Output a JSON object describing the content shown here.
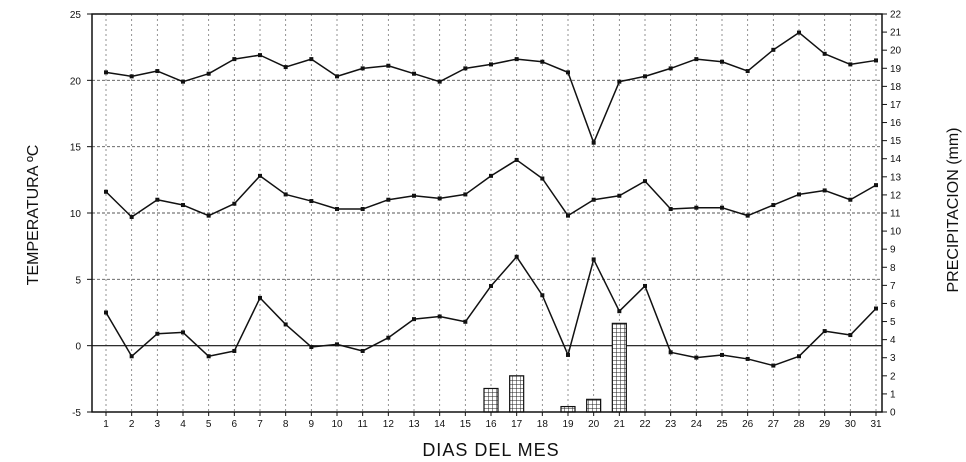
{
  "chart_data": {
    "type": "line",
    "xlabel": "DIAS DEL MES",
    "ylabel": "TEMPERATURA ºC",
    "y2label": "PRECIPITACION (mm)",
    "x": [
      1,
      2,
      3,
      4,
      5,
      6,
      7,
      8,
      9,
      10,
      11,
      12,
      13,
      14,
      15,
      16,
      17,
      18,
      19,
      20,
      21,
      22,
      23,
      24,
      25,
      26,
      27,
      28,
      29,
      30,
      31
    ],
    "ylim": [
      -5,
      25
    ],
    "y_ticks": [
      -5,
      0,
      5,
      10,
      15,
      20,
      25
    ],
    "y2lim": [
      0,
      22
    ],
    "y2_ticks": [
      0,
      1,
      2,
      3,
      4,
      5,
      6,
      7,
      8,
      9,
      10,
      11,
      12,
      13,
      14,
      15,
      16,
      17,
      18,
      19,
      20,
      21,
      22
    ],
    "grid": true,
    "series": [
      {
        "kind": "line",
        "axis": "left",
        "values": [
          20.6,
          20.3,
          20.7,
          19.9,
          20.5,
          21.6,
          21.9,
          21.0,
          21.6,
          20.3,
          20.9,
          21.1,
          20.5,
          19.9,
          20.9,
          21.2,
          21.6,
          21.4,
          20.6,
          15.3,
          19.9,
          20.3,
          20.9,
          21.6,
          21.4,
          20.7,
          22.3,
          23.6,
          22.0,
          21.2,
          21.5
        ]
      },
      {
        "kind": "line",
        "axis": "left",
        "values": [
          11.6,
          9.7,
          11.0,
          10.6,
          9.8,
          10.7,
          12.8,
          11.4,
          10.9,
          10.3,
          10.3,
          11.0,
          11.3,
          11.1,
          11.4,
          12.8,
          14.0,
          12.6,
          9.8,
          11.0,
          11.3,
          12.4,
          10.3,
          10.4,
          10.4,
          9.8,
          10.6,
          11.4,
          11.7,
          11.0,
          12.1
        ]
      },
      {
        "kind": "line",
        "axis": "left",
        "values": [
          2.5,
          -0.8,
          0.9,
          1.0,
          -0.8,
          -0.4,
          3.6,
          1.6,
          -0.1,
          0.1,
          -0.4,
          0.6,
          2.0,
          2.2,
          1.8,
          4.5,
          6.7,
          3.8,
          -0.7,
          6.5,
          2.6,
          4.5,
          -0.5,
          -0.9,
          -0.7,
          -1.0,
          -1.5,
          -0.8,
          1.1,
          0.8,
          2.8
        ]
      },
      {
        "kind": "bar",
        "axis": "right",
        "values": [
          0,
          0,
          0,
          0,
          0,
          0,
          0,
          0,
          0,
          0,
          0,
          0,
          0,
          0,
          0,
          1.3,
          2.0,
          0,
          0.3,
          0.7,
          4.9,
          0,
          0,
          0,
          0,
          0,
          0,
          0,
          0,
          0,
          0
        ]
      }
    ]
  }
}
